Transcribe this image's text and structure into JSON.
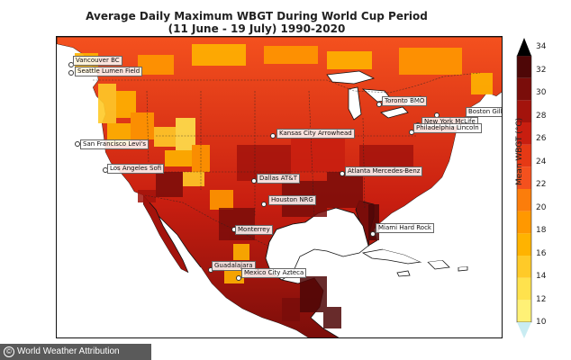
{
  "title_line1": "Average Daily Maximum WBGT During World Cup Period",
  "title_line2": "(11 June - 19 July) 1990-2020",
  "colorbar": {
    "label": "Mean WBGT (°C)",
    "ticks": [
      "34",
      "32",
      "30",
      "28",
      "26",
      "24",
      "22",
      "20",
      "18",
      "16",
      "14",
      "12",
      "10"
    ],
    "min": 10,
    "max": 34,
    "colors": [
      "#fff176",
      "#ffe24d",
      "#ffca28",
      "#ffb300",
      "#ff9800",
      "#fb7d0b",
      "#f4511e",
      "#e53915",
      "#c81e10",
      "#a3130c",
      "#7a0d0a",
      "#4e0707"
    ]
  },
  "cities": [
    {
      "name": "Vancouver BC"
    },
    {
      "name": "Seattle Lumen Field"
    },
    {
      "name": "San Francisco Levi's"
    },
    {
      "name": "Los Angeles Sofi"
    },
    {
      "name": "Kansas City Arrowhead"
    },
    {
      "name": "Dallas AT&T"
    },
    {
      "name": "Houston NRG"
    },
    {
      "name": "Atlanta Mercedes-Benz"
    },
    {
      "name": "Toronto BMO"
    },
    {
      "name": "Boston Gillette"
    },
    {
      "name": "New York McLife"
    },
    {
      "name": "Philadelphia Lincoln"
    },
    {
      "name": "Miami Hard Rock"
    },
    {
      "name": "Monterrey"
    },
    {
      "name": "Guadalajara"
    },
    {
      "name": "Mexico City Azteca"
    }
  ],
  "credit": "World Weather Attribution"
}
